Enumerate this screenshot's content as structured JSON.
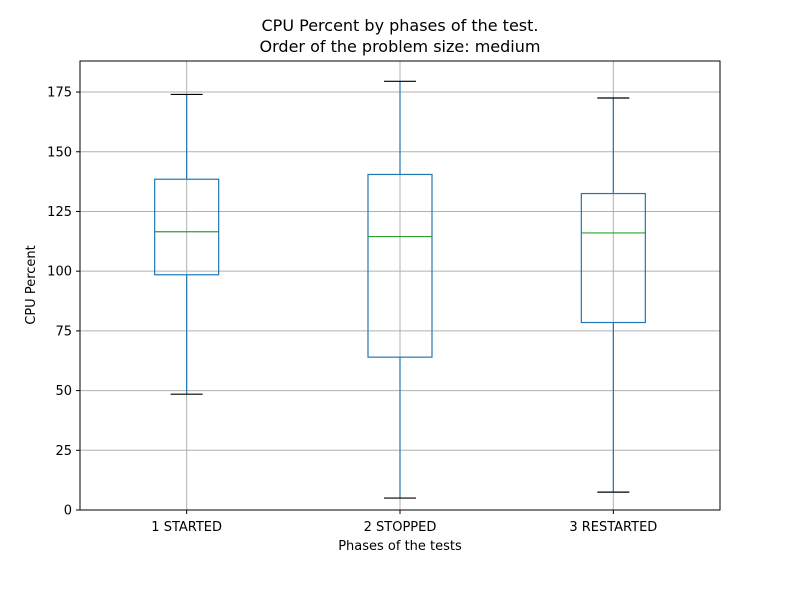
{
  "chart_data": {
    "type": "box",
    "title_line1": "CPU Percent by phases of the test.",
    "title_line2": "Order of the problem size: medium",
    "xlabel": "Phases of the tests",
    "ylabel": "CPU Percent",
    "ylim": [
      0,
      188
    ],
    "yticks": [
      0,
      25,
      50,
      75,
      100,
      125,
      150,
      175
    ],
    "grid": true,
    "categories": [
      "1 STARTED",
      "2 STOPPED",
      "3 RESTARTED"
    ],
    "boxes": [
      {
        "category": "1 STARTED",
        "whisker_low": 48.5,
        "q1": 98.5,
        "median": 116.5,
        "q3": 138.5,
        "whisker_high": 174.0
      },
      {
        "category": "2 STOPPED",
        "whisker_low": 5.0,
        "q1": 64.0,
        "median": 114.5,
        "q3": 140.5,
        "whisker_high": 179.5
      },
      {
        "category": "3 RESTARTED",
        "whisker_low": 7.5,
        "q1": 78.5,
        "median": 116.0,
        "q3": 132.5,
        "whisker_high": 172.5
      }
    ],
    "colors": {
      "box": "#1f77b4",
      "median": "#2ca02c",
      "cap": "#000000",
      "grid": "#b0b0b0"
    }
  }
}
